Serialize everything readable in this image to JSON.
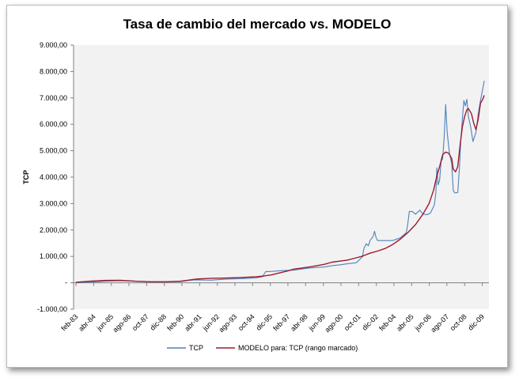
{
  "chart_data": {
    "type": "line",
    "title": "Tasa de cambio del mercado vs. MODELO",
    "ylabel": "TCP",
    "xlabel": "",
    "ylim": [
      -1000,
      9000
    ],
    "y_ticks": [
      -1000,
      0,
      1000,
      2000,
      3000,
      4000,
      5000,
      6000,
      7000,
      8000,
      9000
    ],
    "y_tick_labels": [
      "-1.000,00",
      "-",
      "1.000,00",
      "2.000,00",
      "3.000,00",
      "4.000,00",
      "5.000,00",
      "6.000,00",
      "7.000,00",
      "8.000,00",
      "9.000,00"
    ],
    "x_range": [
      1983.08,
      2010.2
    ],
    "x_ticks": [
      {
        "x": 1983.08,
        "label": "feb-83"
      },
      {
        "x": 1984.25,
        "label": "abr-84"
      },
      {
        "x": 1985.42,
        "label": "jun-85"
      },
      {
        "x": 1986.58,
        "label": "ago-86"
      },
      {
        "x": 1987.75,
        "label": "oct-87"
      },
      {
        "x": 1988.92,
        "label": "dic-88"
      },
      {
        "x": 1990.08,
        "label": "feb-90"
      },
      {
        "x": 1991.25,
        "label": "abr-91"
      },
      {
        "x": 1992.42,
        "label": "jun-92"
      },
      {
        "x": 1993.58,
        "label": "ago-93"
      },
      {
        "x": 1994.75,
        "label": "oct-94"
      },
      {
        "x": 1995.92,
        "label": "dic-95"
      },
      {
        "x": 1997.08,
        "label": "feb-97"
      },
      {
        "x": 1998.25,
        "label": "abr-98"
      },
      {
        "x": 1999.42,
        "label": "jun-99"
      },
      {
        "x": 2000.58,
        "label": "ago-00"
      },
      {
        "x": 2001.75,
        "label": "oct-01"
      },
      {
        "x": 2002.92,
        "label": "dic-02"
      },
      {
        "x": 2004.08,
        "label": "feb-04"
      },
      {
        "x": 2005.25,
        "label": "abr-05"
      },
      {
        "x": 2006.42,
        "label": "jun-06"
      },
      {
        "x": 2007.58,
        "label": "ago-07"
      },
      {
        "x": 2008.75,
        "label": "oct-08"
      },
      {
        "x": 2009.92,
        "label": "dic-09"
      }
    ],
    "grid": false,
    "legend_position": "bottom",
    "series": [
      {
        "name": "TCP",
        "color": "#4f81bd",
        "points": [
          [
            1983.08,
            10
          ],
          [
            1984.0,
            25
          ],
          [
            1985.0,
            60
          ],
          [
            1986.0,
            80
          ],
          [
            1987.0,
            60
          ],
          [
            1988.0,
            40
          ],
          [
            1989.0,
            35
          ],
          [
            1990.0,
            45
          ],
          [
            1990.5,
            90
          ],
          [
            1991.0,
            110
          ],
          [
            1992.0,
            100
          ],
          [
            1993.0,
            140
          ],
          [
            1994.0,
            160
          ],
          [
            1995.0,
            190
          ],
          [
            1995.4,
            230
          ],
          [
            1995.6,
            420
          ],
          [
            1996.0,
            430
          ],
          [
            1996.7,
            460
          ],
          [
            1997.0,
            470
          ],
          [
            1997.5,
            480
          ],
          [
            1998.0,
            520
          ],
          [
            1998.5,
            560
          ],
          [
            1999.0,
            580
          ],
          [
            1999.5,
            600
          ],
          [
            2000.0,
            650
          ],
          [
            2000.5,
            680
          ],
          [
            2001.0,
            720
          ],
          [
            2001.6,
            760
          ],
          [
            2002.0,
            980
          ],
          [
            2002.1,
            1300
          ],
          [
            2002.25,
            1480
          ],
          [
            2002.4,
            1400
          ],
          [
            2002.5,
            1600
          ],
          [
            2002.7,
            1750
          ],
          [
            2002.8,
            1950
          ],
          [
            2002.9,
            1720
          ],
          [
            2003.0,
            1600
          ],
          [
            2003.5,
            1600
          ],
          [
            2004.0,
            1600
          ],
          [
            2004.5,
            1700
          ],
          [
            2004.9,
            1900
          ],
          [
            2005.0,
            2250
          ],
          [
            2005.1,
            2700
          ],
          [
            2005.3,
            2700
          ],
          [
            2005.5,
            2600
          ],
          [
            2005.8,
            2750
          ],
          [
            2006.0,
            2600
          ],
          [
            2006.3,
            2580
          ],
          [
            2006.5,
            2650
          ],
          [
            2006.75,
            2950
          ],
          [
            2006.85,
            3400
          ],
          [
            2006.92,
            4350
          ],
          [
            2007.0,
            3700
          ],
          [
            2007.1,
            3900
          ],
          [
            2007.2,
            4600
          ],
          [
            2007.3,
            4700
          ],
          [
            2007.4,
            5500
          ],
          [
            2007.5,
            6750
          ],
          [
            2007.6,
            5700
          ],
          [
            2007.75,
            4900
          ],
          [
            2007.9,
            4500
          ],
          [
            2008.0,
            3500
          ],
          [
            2008.1,
            3400
          ],
          [
            2008.3,
            3420
          ],
          [
            2008.4,
            4300
          ],
          [
            2008.5,
            5400
          ],
          [
            2008.6,
            6200
          ],
          [
            2008.7,
            6900
          ],
          [
            2008.8,
            6700
          ],
          [
            2008.9,
            6950
          ],
          [
            2009.0,
            6300
          ],
          [
            2009.15,
            5900
          ],
          [
            2009.3,
            5350
          ],
          [
            2009.5,
            5700
          ],
          [
            2009.65,
            6400
          ],
          [
            2009.8,
            6900
          ],
          [
            2009.9,
            7200
          ],
          [
            2010.05,
            7650
          ]
        ]
      },
      {
        "name": "MODELO para: TCP (rango marcado)",
        "color": "#9b1b30",
        "points": [
          [
            1983.08,
            20
          ],
          [
            1984.0,
            60
          ],
          [
            1985.0,
            90
          ],
          [
            1986.0,
            95
          ],
          [
            1987.0,
            60
          ],
          [
            1988.0,
            40
          ],
          [
            1989.0,
            40
          ],
          [
            1990.0,
            60
          ],
          [
            1990.5,
            100
          ],
          [
            1991.0,
            140
          ],
          [
            1992.0,
            170
          ],
          [
            1993.0,
            180
          ],
          [
            1994.0,
            200
          ],
          [
            1995.0,
            230
          ],
          [
            1995.5,
            260
          ],
          [
            1996.0,
            300
          ],
          [
            1996.5,
            370
          ],
          [
            1997.0,
            440
          ],
          [
            1997.5,
            520
          ],
          [
            1998.0,
            560
          ],
          [
            1998.5,
            600
          ],
          [
            1999.0,
            650
          ],
          [
            1999.5,
            700
          ],
          [
            2000.0,
            780
          ],
          [
            2000.5,
            820
          ],
          [
            2001.0,
            860
          ],
          [
            2001.5,
            930
          ],
          [
            2002.0,
            1010
          ],
          [
            2002.5,
            1120
          ],
          [
            2003.0,
            1200
          ],
          [
            2003.5,
            1300
          ],
          [
            2004.0,
            1450
          ],
          [
            2004.5,
            1650
          ],
          [
            2005.0,
            1900
          ],
          [
            2005.5,
            2200
          ],
          [
            2006.0,
            2600
          ],
          [
            2006.4,
            3000
          ],
          [
            2006.7,
            3500
          ],
          [
            2006.9,
            4000
          ],
          [
            2007.1,
            4400
          ],
          [
            2007.3,
            4850
          ],
          [
            2007.5,
            4950
          ],
          [
            2007.7,
            4900
          ],
          [
            2007.9,
            4700
          ],
          [
            2008.0,
            4300
          ],
          [
            2008.15,
            4200
          ],
          [
            2008.3,
            4400
          ],
          [
            2008.45,
            5200
          ],
          [
            2008.6,
            5900
          ],
          [
            2008.75,
            6300
          ],
          [
            2008.9,
            6550
          ],
          [
            2009.0,
            6600
          ],
          [
            2009.2,
            6400
          ],
          [
            2009.35,
            6050
          ],
          [
            2009.5,
            5800
          ],
          [
            2009.65,
            6200
          ],
          [
            2009.8,
            6800
          ],
          [
            2009.95,
            6950
          ],
          [
            2010.05,
            7100
          ]
        ]
      }
    ]
  }
}
